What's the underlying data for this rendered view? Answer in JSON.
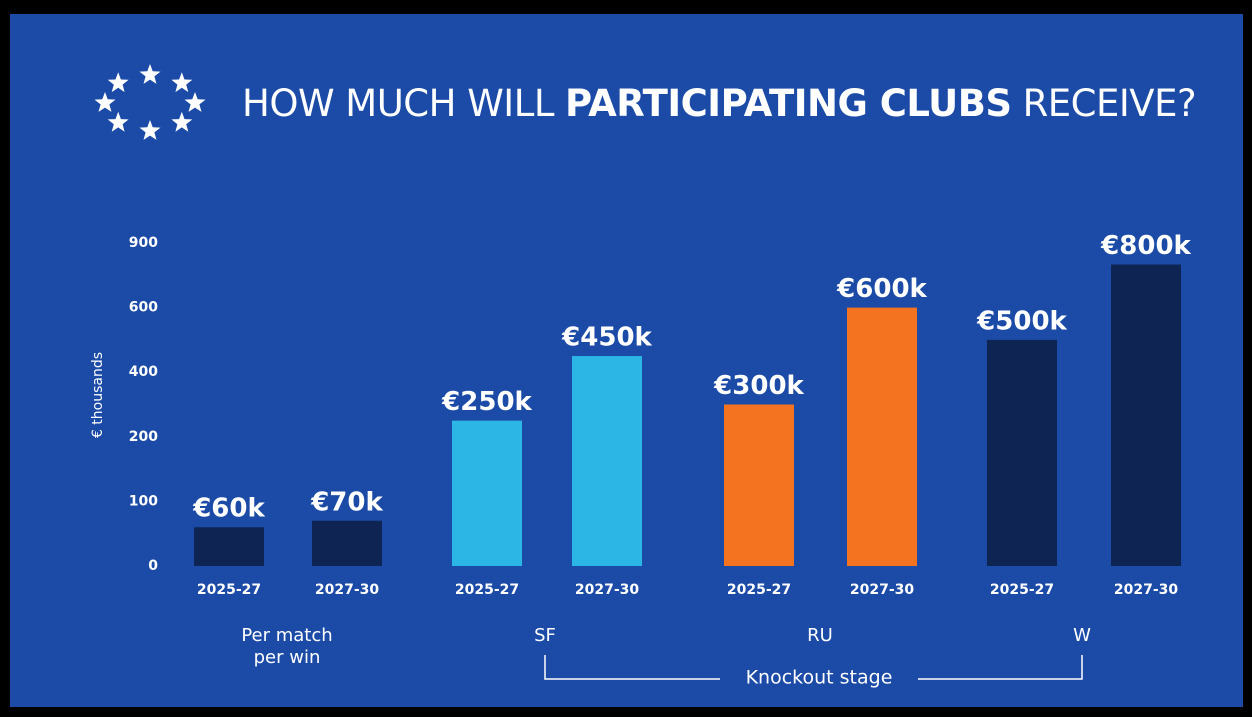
{
  "chart_data": {
    "type": "bar",
    "title_parts": [
      "HOW MUCH WILL",
      "PARTICIPATING CLUBS",
      "RECEIVE?"
    ],
    "ylabel": "€ thousands",
    "categories": [
      "2025-27",
      "2027-30",
      "2025-27",
      "2027-30",
      "2025-27",
      "2027-30",
      "2025-27",
      "2027-30"
    ],
    "values": [
      60,
      70,
      250,
      450,
      300,
      600,
      500,
      800
    ],
    "value_labels": [
      "€60k",
      "€70k",
      "€250k",
      "€450k",
      "€300k",
      "€600k",
      "€500k",
      "€800k"
    ],
    "colors": [
      "#0e2452",
      "#0e2452",
      "#2cb6e6",
      "#2cb6e6",
      "#f37321",
      "#f37321",
      "#0e2452",
      "#0e2452"
    ],
    "groups": [
      "Per match per win",
      "SF",
      "RU",
      "W"
    ],
    "bracket_label": "Knockout stage",
    "ylim": [
      0,
      900
    ],
    "yticks": [
      0,
      100,
      200,
      400,
      600,
      900
    ]
  }
}
